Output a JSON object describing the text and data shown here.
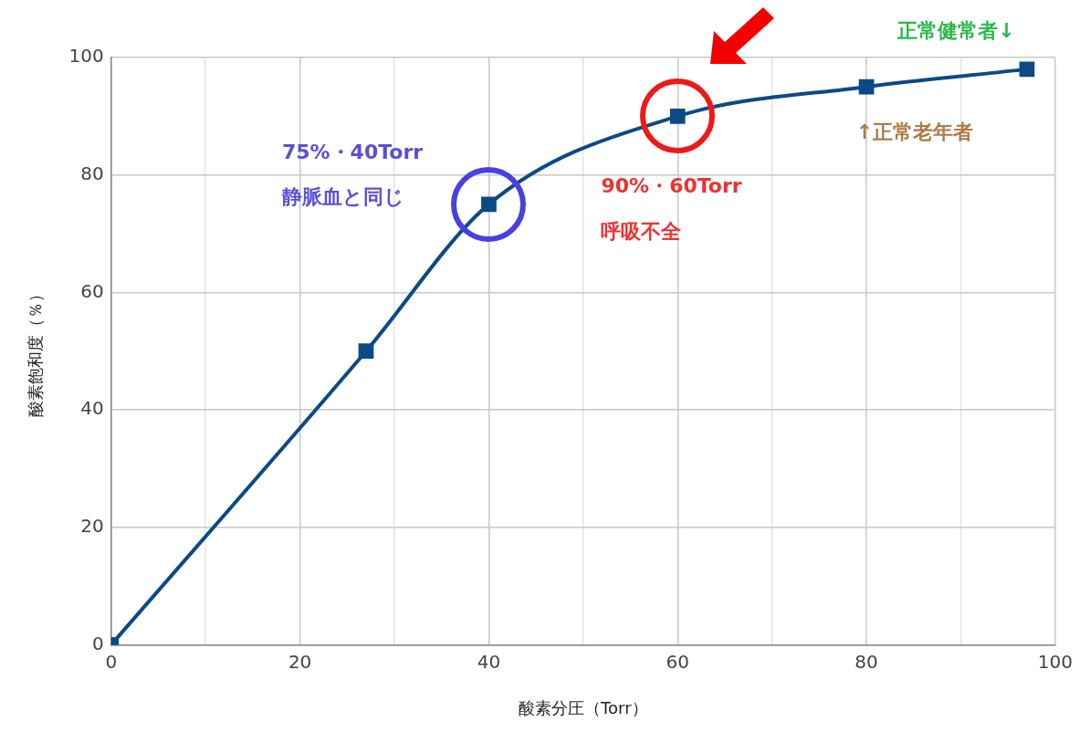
{
  "chart_data": {
    "type": "line",
    "xlabel": "酸素分圧（Torr）",
    "ylabel": "酸素飽和度（％）",
    "x": [
      0,
      27,
      40,
      60,
      80,
      97
    ],
    "series": [
      {
        "color": "#0b4a86",
        "values": [
          0,
          50,
          75,
          90,
          95,
          98
        ]
      }
    ],
    "xlim": [
      0,
      100
    ],
    "ylim": [
      0,
      100
    ],
    "xticks": [
      0,
      {
        "value": 10,
        "label": null
      },
      20,
      {
        "value": 30,
        "label": null
      },
      40,
      {
        "value": 50,
        "label": null
      },
      60,
      {
        "value": 70,
        "label": null
      },
      80,
      {
        "value": 90,
        "label": null
      },
      100
    ],
    "yticks": [
      0,
      20,
      40,
      60,
      80,
      100
    ],
    "grid": true,
    "legend": false,
    "marker": "square",
    "line_style": "solid",
    "annotations": [
      "75%・40Torr",
      "静脈血と同じ",
      "90%・60Torr",
      "呼吸不全",
      "↑正常老年者",
      "正常健常者↓"
    ]
  }
}
